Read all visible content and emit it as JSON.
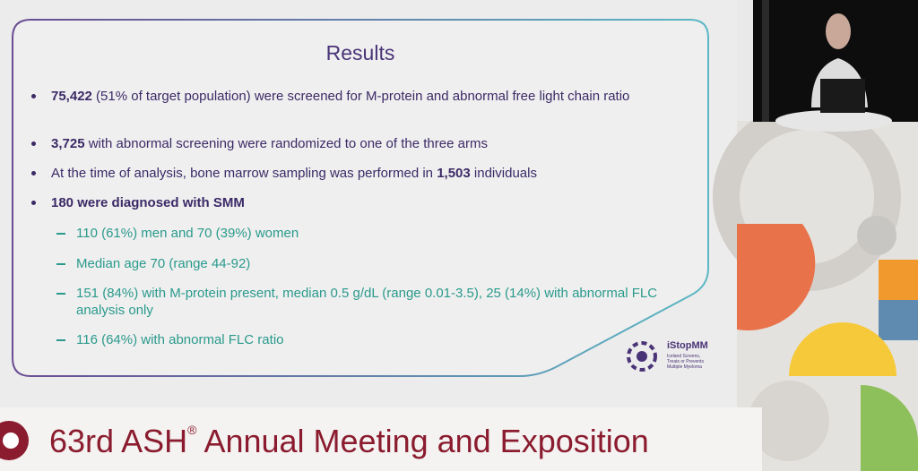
{
  "slide": {
    "title": "Results",
    "bullets": [
      {
        "parts": [
          {
            "text": "75,422",
            "bold": true
          },
          {
            "text": " (51% of target population) were screened for M-protein and abnormal free light chain ratio"
          }
        ]
      },
      {
        "parts": [
          {
            "text": "3,725",
            "bold": true
          },
          {
            "text": " with abnormal screening were randomized to one of the three arms"
          }
        ]
      },
      {
        "parts": [
          {
            "text": "At the time of analysis, bone marrow sampling was performed in "
          },
          {
            "text": "1,503",
            "bold": true
          },
          {
            "text": " individuals"
          }
        ]
      },
      {
        "parts": [
          {
            "text": "180 were diagnosed with SMM",
            "bold": true
          }
        ]
      }
    ],
    "sub_bullets": [
      "110 (61%) men and 70 (39%) women",
      "Median age 70 (range 44-92)",
      "151 (84%) with M-protein present, median 0.5 g/dL (range 0.01-3.5), 25 (14%) with abnormal FLC analysis only",
      "116 (64%) with abnormal FLC ratio"
    ]
  },
  "logo": {
    "name": "iStopMM",
    "tagline": "Iceland Screens, Treats or Prevents Multiple Myeloma"
  },
  "banner": {
    "lead": "63rd ASH",
    "mark": "®",
    "rest": " Annual Meeting and Exposition"
  }
}
